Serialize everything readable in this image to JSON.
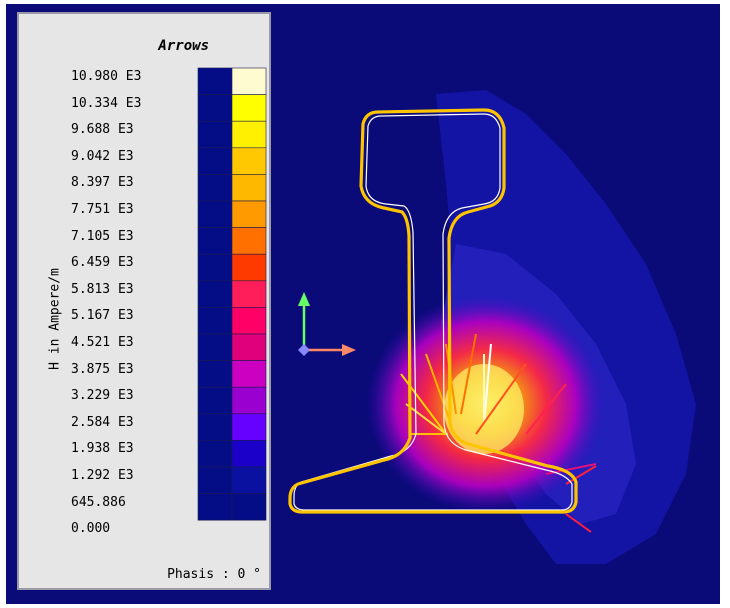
{
  "legend": {
    "title": "Arrows",
    "quantity_label": "H in Ampere/m",
    "phase_label": "Phasis : 0 °",
    "levels": [
      {
        "label": "10.980 E3",
        "color": "#fffbd0"
      },
      {
        "label": "10.334 E3",
        "color": "#ffff00"
      },
      {
        "label": "9.688 E3",
        "color": "#ffef00"
      },
      {
        "label": "9.042 E3",
        "color": "#ffc800"
      },
      {
        "label": "8.397 E3",
        "color": "#ffb800"
      },
      {
        "label": "7.751 E3",
        "color": "#ff9a00"
      },
      {
        "label": "7.105 E3",
        "color": "#ff7000"
      },
      {
        "label": "6.459 E3",
        "color": "#ff3a00"
      },
      {
        "label": "5.813 E3",
        "color": "#ff1e5a"
      },
      {
        "label": "5.167 E3",
        "color": "#ff0066"
      },
      {
        "label": "4.521 E3",
        "color": "#e0007c"
      },
      {
        "label": "3.875 E3",
        "color": "#cc00c0"
      },
      {
        "label": "3.229 E3",
        "color": "#9a00d0"
      },
      {
        "label": "2.584 E3",
        "color": "#6600ff"
      },
      {
        "label": "1.938 E3",
        "color": "#1a00c8"
      },
      {
        "label": "1.292 E3",
        "color": "#0a10a0"
      },
      {
        "label": "645.886",
        "color": "#050d86"
      },
      {
        "label": "0.000",
        "color": "#050d86"
      }
    ]
  },
  "colors": {
    "background": "#0a0a78",
    "rail_outline": "#ffc400",
    "axis_y": "#66ff66",
    "axis_x": "#ff8866"
  },
  "icons": {
    "axis_triad": "xyz-axis-triad-icon"
  }
}
